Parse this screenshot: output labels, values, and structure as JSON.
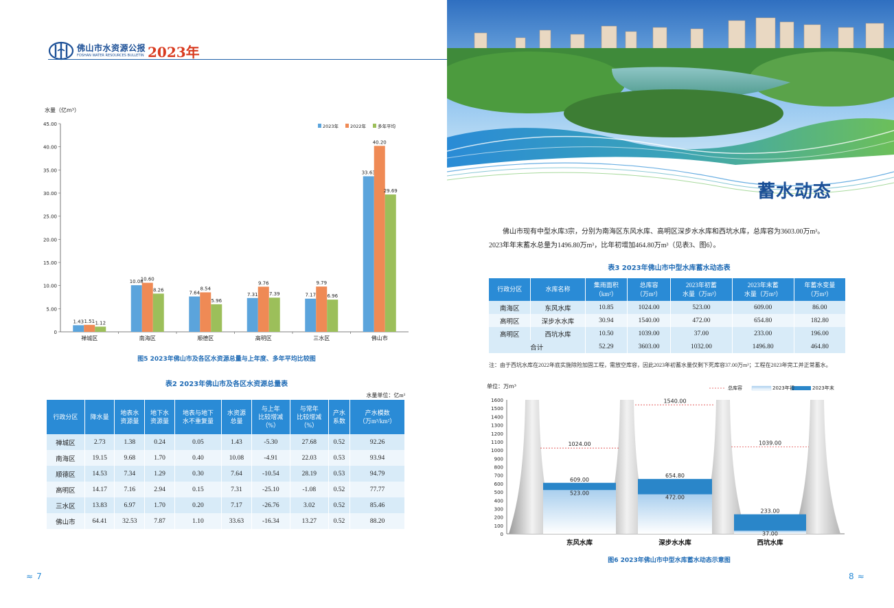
{
  "left_page": {
    "logo": {
      "title": "佛山市水资源公报",
      "subtitle": "FOSHAN WATER RESOURCES BULLETIN",
      "year": "2023年"
    },
    "figure5": {
      "caption": "图5   2023年佛山市及各区水资源总量与上年度、多年平均比较图",
      "chart_data": {
        "type": "bar",
        "ylabel": "水量（亿m³）",
        "ylim": [
          0,
          45
        ],
        "yticks": [
          "0",
          "5.00",
          "10.00",
          "15.00",
          "20.00",
          "25.00",
          "30.00",
          "35.00",
          "40.00",
          "45.00"
        ],
        "categories": [
          "禅城区",
          "南海区",
          "顺德区",
          "高明区",
          "三水区",
          "佛山市"
        ],
        "series": [
          {
            "name": "2023年",
            "values": [
              1.43,
              10.08,
              7.64,
              7.31,
              7.17,
              33.63
            ],
            "labels": [
              "1.43",
              "10.08",
              "7.64",
              "7.31",
              "7.17",
              "33.63"
            ],
            "color": "#5ba4dc"
          },
          {
            "name": "2022年",
            "values": [
              1.51,
              10.6,
              8.54,
              9.76,
              9.79,
              40.2
            ],
            "labels": [
              "1.51",
              "10.60",
              "8.54",
              "9.76",
              "9.79",
              "40.20"
            ],
            "color": "#ef8a55"
          },
          {
            "name": "多年平均",
            "values": [
              1.12,
              8.26,
              5.96,
              7.39,
              6.96,
              29.69
            ],
            "labels": [
              "1.12",
              "8.26",
              "5.96",
              "7.39",
              "6.96",
              "29.69"
            ],
            "color": "#9cbf5a"
          }
        ]
      }
    },
    "table2": {
      "title": "表2   2023年佛山市及各区水资源总量表",
      "unit": "水量单位：亿m³",
      "headers": [
        "行政分区",
        "降水量",
        "地表水\n资源量",
        "地下水\n资源量",
        "地表与地下\n水不重复量",
        "水资源\n总量",
        "与上年\n比较增减\n（%）",
        "与常年\n比较增减\n（%）",
        "产水\n系数",
        "产水模数\n（万m³/km²）"
      ],
      "rows": [
        [
          "禅城区",
          "2.73",
          "1.38",
          "0.24",
          "0.05",
          "1.43",
          "-5.30",
          "27.68",
          "0.52",
          "92.26"
        ],
        [
          "南海区",
          "19.15",
          "9.68",
          "1.70",
          "0.40",
          "10.08",
          "-4.91",
          "22.03",
          "0.53",
          "93.94"
        ],
        [
          "顺德区",
          "14.53",
          "7.34",
          "1.29",
          "0.30",
          "7.64",
          "-10.54",
          "28.19",
          "0.53",
          "94.79"
        ],
        [
          "高明区",
          "14.17",
          "7.16",
          "2.94",
          "0.15",
          "7.31",
          "-25.10",
          "-1.08",
          "0.52",
          "77.77"
        ],
        [
          "三水区",
          "13.83",
          "6.97",
          "1.70",
          "0.20",
          "7.17",
          "-26.76",
          "3.02",
          "0.52",
          "85.46"
        ],
        [
          "佛山市",
          "64.41",
          "32.53",
          "7.87",
          "1.10",
          "33.63",
          "-16.34",
          "13.27",
          "0.52",
          "88.20"
        ]
      ]
    },
    "page_number": "7"
  },
  "right_page": {
    "section_title": "蓄水动态",
    "paragraph1": "佛山市现有中型水库3宗，分别为南海区东风水库、高明区深步水水库和西坑水库，总库容为3603.00万m³。",
    "paragraph2": "2023年年末蓄水总量为1496.80万m³，比年初增加464.80万m³（见表3、图6）。",
    "table3": {
      "title": "表3   2023年佛山市中型水库蓄水动态表",
      "headers": [
        "行政分区",
        "水库名称",
        "集雨面积\n（km²）",
        "总库容\n（万m³）",
        "2023年初蓄\n水量（万m³）",
        "2023年末蓄\n水量（万m³）",
        "年蓄水变量\n（万m³）"
      ],
      "rows": [
        [
          "南海区",
          "东风水库",
          "10.85",
          "1024.00",
          "523.00",
          "609.00",
          "86.00"
        ],
        [
          "高明区",
          "深步水水库",
          "30.94",
          "1540.00",
          "472.00",
          "654.80",
          "182.80"
        ],
        [
          "高明区",
          "西坑水库",
          "10.50",
          "1039.00",
          "37.00",
          "233.00",
          "196.00"
        ]
      ],
      "total": [
        "合计",
        "52.29",
        "3603.00",
        "1032.00",
        "1496.80",
        "464.80"
      ]
    },
    "note": "注：由于西坑水库在2022年底实施除险加固工程，需放空库容，因此2023年初蓄水量仅剩下死库容37.00万m³；工程在2023年完工并正常蓄水。",
    "figure6": {
      "caption": "图6  2023年佛山市中型水库蓄水动态示意图",
      "chart_data": {
        "type": "bar",
        "unit_label": "单位：万m³",
        "ylim": [
          0,
          1600
        ],
        "yticks": [
          "0",
          "100",
          "200",
          "300",
          "400",
          "500",
          "600",
          "700",
          "800",
          "900",
          "1000",
          "1100",
          "1200",
          "1300",
          "1400",
          "1500",
          "1600"
        ],
        "legend": [
          "总库容",
          "2023年初",
          "2023年末"
        ],
        "categories": [
          "东风水库",
          "深步水水库",
          "西坑水库"
        ],
        "series": [
          {
            "name": "总库容",
            "values": [
              1024.0,
              1540.0,
              1039.0
            ],
            "labels": [
              "1024.00",
              "1540.00",
              "1039.00"
            ]
          },
          {
            "name": "2023年初",
            "values": [
              523.0,
              472.0,
              37.0
            ],
            "labels": [
              "523.00",
              "472.00",
              "37.00"
            ]
          },
          {
            "name": "2023年末",
            "values": [
              609.0,
              654.8,
              233.0
            ],
            "labels": [
              "609.00",
              "654.80",
              "233.00"
            ]
          }
        ]
      }
    },
    "page_number": "8"
  },
  "colors": {
    "brand_blue": "#1b4f96",
    "accent_red": "#d83a1f",
    "table_header": "#2a8bd6",
    "caption_blue": "#1f6bb5"
  }
}
